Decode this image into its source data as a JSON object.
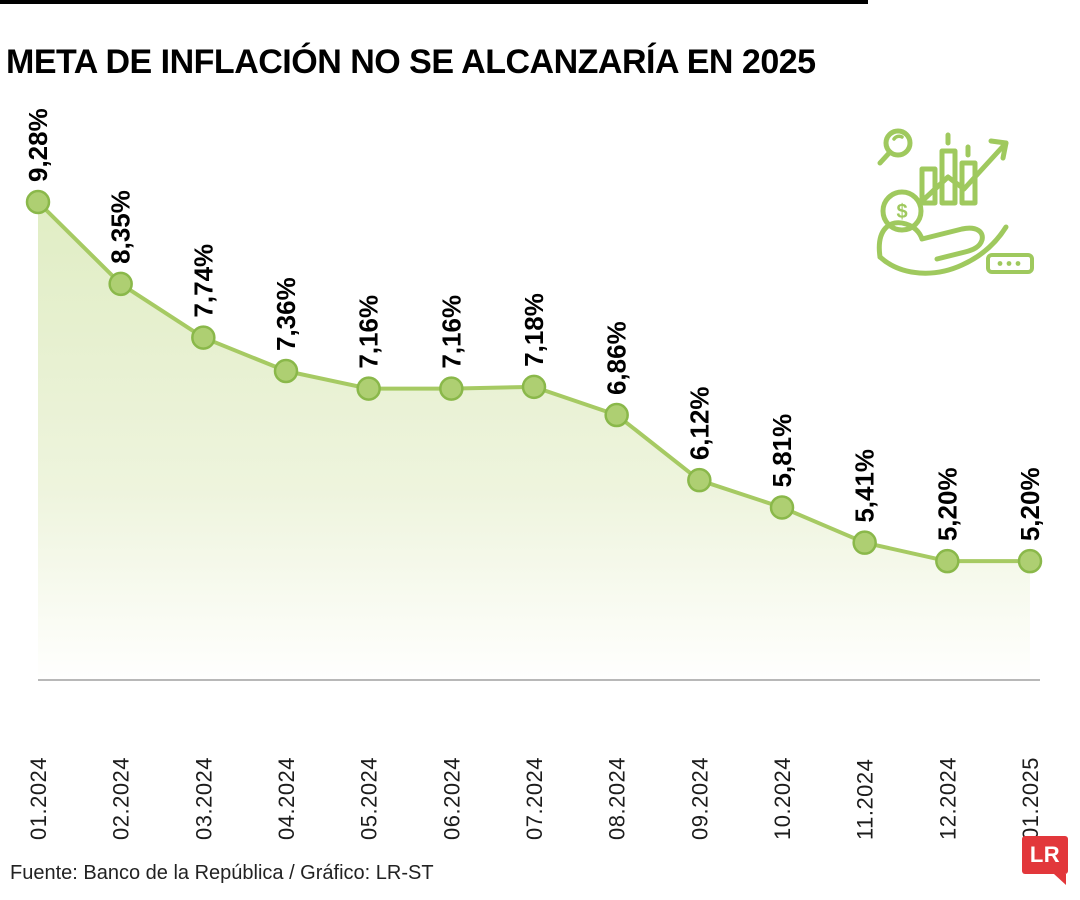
{
  "header": {
    "title": "META DE INFLACIÓN NO SE ALCANZARÍA EN 2025"
  },
  "footer": {
    "source": "Fuente: Banco de la República / Gráfico: LR-ST",
    "logo_text": "LR"
  },
  "icons": {
    "growth_icon": "money-growth-hand-icon",
    "dollar_sign": "$"
  },
  "colors": {
    "line": "#a6ca63",
    "marker_fill": "#aecf72",
    "marker_stroke": "#8ab84a",
    "area_top": "#e0edc4",
    "area_bottom": "#fffffe",
    "axis": "#a0a0a0",
    "icon_green": "#9fc95e",
    "logo_red": "#e2373b"
  },
  "chart_data": {
    "type": "area",
    "title": "META DE INFLACIÓN NO SE ALCANZARÍA EN 2025",
    "x": [
      "01.2024",
      "02.2024",
      "03.2024",
      "04.2024",
      "05.2024",
      "06.2024",
      "07.2024",
      "08.2024",
      "09.2024",
      "10.2024",
      "11.2024",
      "12.2024",
      "01.2025"
    ],
    "values": [
      9.28,
      8.35,
      7.74,
      7.36,
      7.16,
      7.16,
      7.18,
      6.86,
      6.12,
      5.81,
      5.41,
      5.2,
      5.2
    ],
    "labels": [
      "9,28%",
      "8,35%",
      "7,74%",
      "7,36%",
      "7,16%",
      "7,16%",
      "7,18%",
      "6,86%",
      "6,12%",
      "5,81%",
      "5,41%",
      "5,20%",
      "5,20%"
    ],
    "xlabel": "",
    "ylabel": "",
    "ylim": [
      3.85,
      9.9
    ],
    "grid": false,
    "legend": false
  }
}
